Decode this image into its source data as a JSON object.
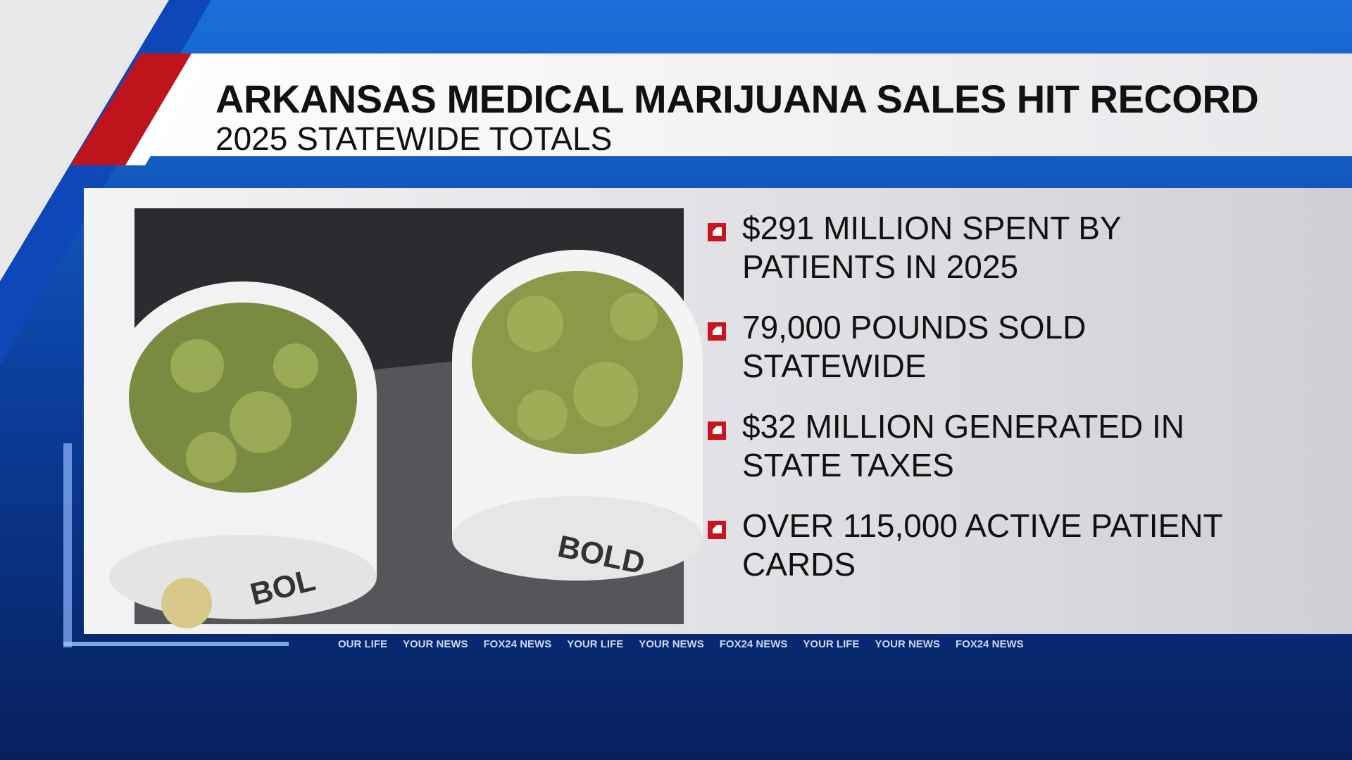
{
  "header": {
    "title": "ARKANSAS MEDICAL MARIJUANA SALES HIT RECORD",
    "subtitle": "2025 STATEWIDE TOTALS"
  },
  "bullets": [
    [
      "$291 MILLION SPENT BY",
      "PATIENTS IN 2025"
    ],
    [
      "79,000 POUNDS SOLD",
      "STATEWIDE"
    ],
    [
      "$32 MILLION GENERATED IN",
      "STATE TAXES"
    ],
    [
      "OVER 115,000 ACTIVE PATIENT",
      "CARDS"
    ]
  ],
  "photo": {
    "labels": [
      "BOL",
      "BOLD"
    ]
  },
  "ticker": [
    "OUR LIFE",
    "YOUR NEWS",
    "FOX24 NEWS",
    "YOUR LIFE",
    "YOUR NEWS",
    "FOX24 NEWS",
    "YOUR LIFE",
    "YOUR NEWS",
    "FOX24 NEWS"
  ]
}
